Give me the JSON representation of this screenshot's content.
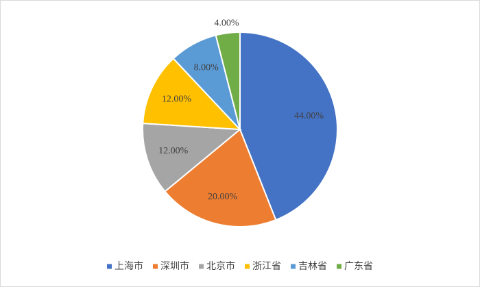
{
  "chart_data": {
    "type": "pie",
    "categories": [
      "上海市",
      "深圳市",
      "北京市",
      "浙江省",
      "吉林省",
      "广东省"
    ],
    "values": [
      44,
      20,
      12,
      12,
      8,
      4
    ],
    "value_labels": [
      "44.00%",
      "20.00%",
      "12.00%",
      "12.00%",
      "8.00%",
      "4.00%"
    ],
    "colors": [
      "#4472c4",
      "#ed7d31",
      "#a5a5a5",
      "#ffc000",
      "#5b9bd5",
      "#70ad47"
    ],
    "legend": "bottom"
  }
}
